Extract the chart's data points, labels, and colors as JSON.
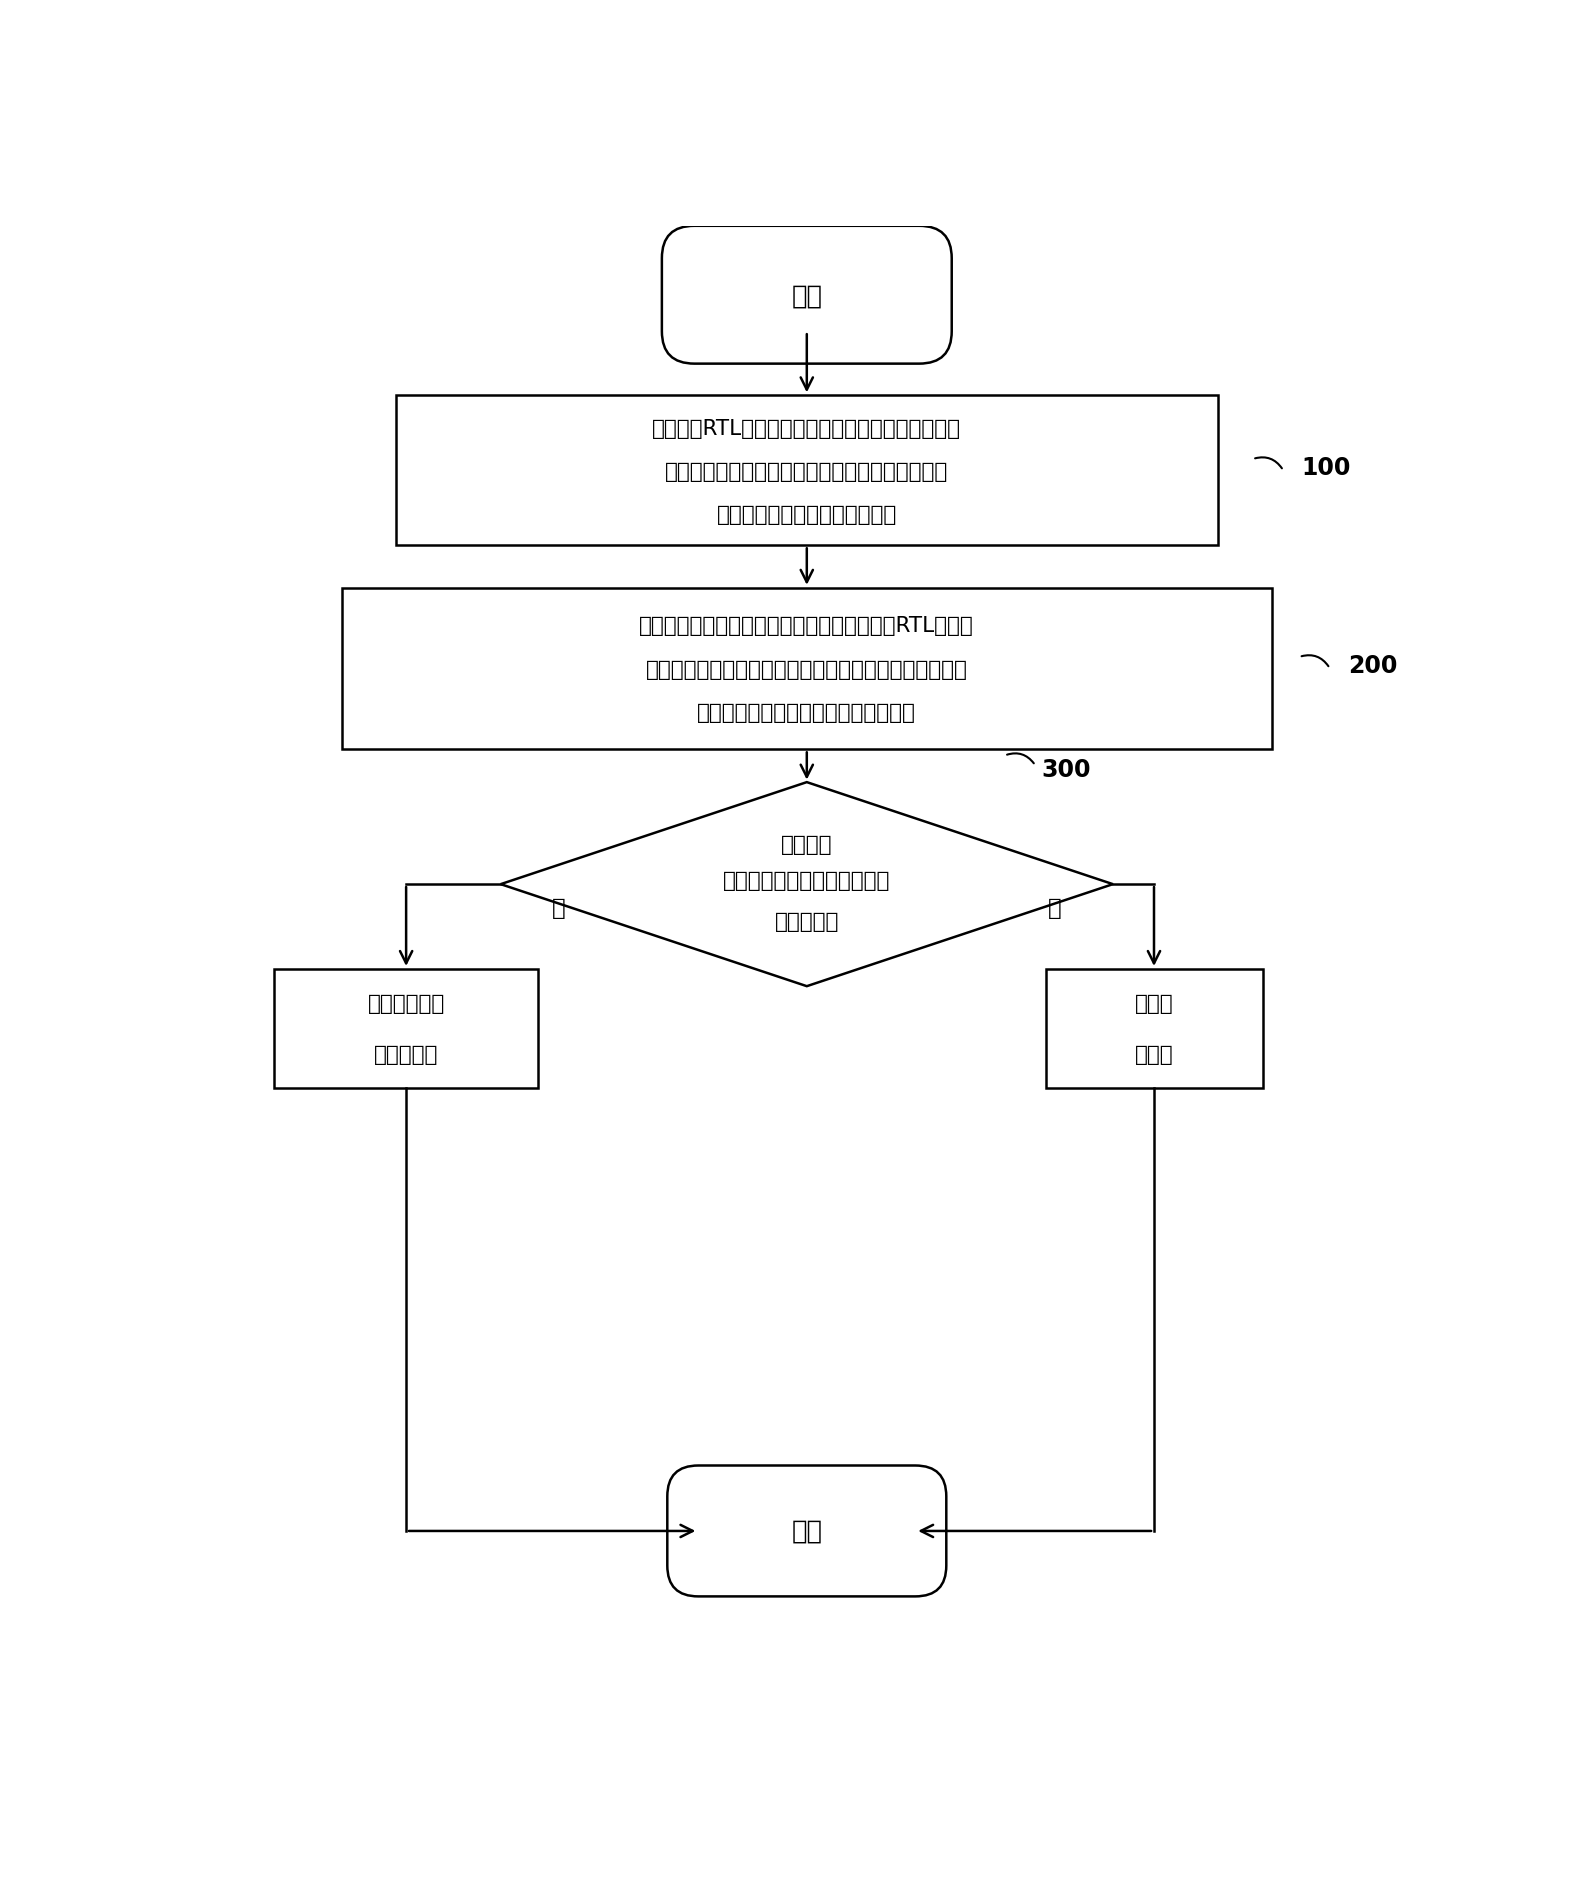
{
  "bg_color": "#ffffff",
  "line_color": "#000000",
  "text_color": "#000000",
  "start_label": "开始",
  "end_label": "结束",
  "box1_line1": "接收一个RTL设计源代码和相应的设计规范文件，根",
  "box1_line2": "据待检测错误的类型并结合所述设计规范文件，构",
  "box1_line3": "建对待测错误的检测标准并存储",
  "box2_line1": "针对待检测错误的类型，分模块遍历整个所述RTL设计源",
  "box2_line2": "代码，通过词法分析、语法分析和静态语义分析提取待测",
  "box2_line3": "错误的特征信息，对特征信息进行存储",
  "diamond_line1": "判断所述",
  "diamond_line2": "待测错误的检测标准与特征信",
  "diamond_line3": "息是否匹配",
  "diamond_label": "300",
  "yes_label": "是",
  "no_label": "否",
  "box3_line1": "结束待测设计",
  "box3_line2": "的错误检测",
  "box4_line1": "发送错",
  "box4_line2": "误报告",
  "label1": "100",
  "label2": "200",
  "font_size": 15.5,
  "label_font_size": 16,
  "lw": 1.8
}
